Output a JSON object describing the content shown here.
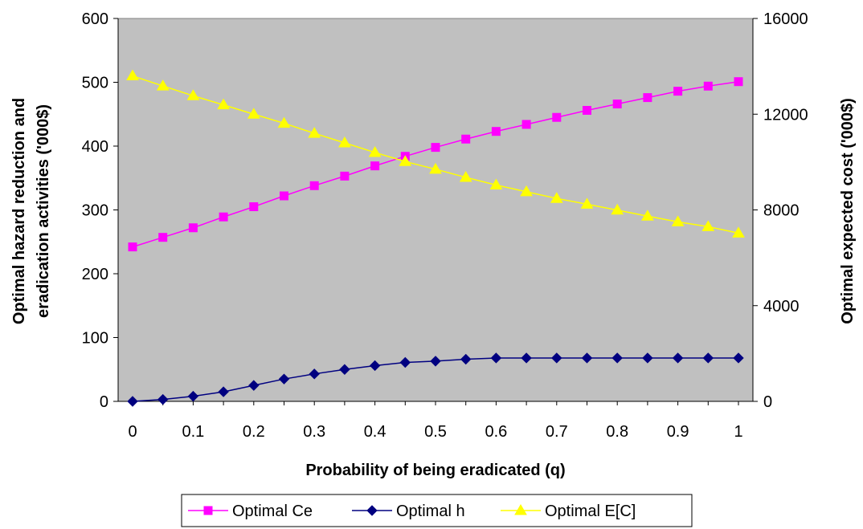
{
  "chart_data": {
    "type": "line",
    "xlabel": "Probability of being eradicated (q)",
    "ylabel": "Optimal hazard reduction and eradication activities ('000$)",
    "ylabel_lines": [
      "Optimal hazard reduction and",
      "eradication activities ('000$)"
    ],
    "y2label": "Optimal expected cost ('000$)",
    "x": [
      0,
      0.05,
      0.1,
      0.15,
      0.2,
      0.25,
      0.3,
      0.35,
      0.4,
      0.45,
      0.5,
      0.55,
      0.6,
      0.65,
      0.7,
      0.75,
      0.8,
      0.85,
      0.9,
      0.95,
      1
    ],
    "x_tick_labels": [
      "0",
      "0.1",
      "0.2",
      "0.3",
      "0.4",
      "0.5",
      "0.6",
      "0.7",
      "0.8",
      "0.9",
      "1"
    ],
    "ylim": [
      0,
      600
    ],
    "y_ticks": [
      0,
      100,
      200,
      300,
      400,
      500,
      600
    ],
    "y2lim": [
      0,
      16000
    ],
    "y2_ticks": [
      0,
      4000,
      8000,
      12000,
      16000
    ],
    "grid": false,
    "plot_background": "#c0c0c0",
    "legend_position": "bottom",
    "series": [
      {
        "name": "Optimal Ce",
        "axis": "left",
        "color": "#ff00ff",
        "marker": "square",
        "values": [
          242,
          257,
          272,
          289,
          305,
          322,
          338,
          353,
          369,
          384,
          398,
          411,
          423,
          434,
          445,
          456,
          466,
          476,
          486,
          494,
          501
        ]
      },
      {
        "name": "Optimal h",
        "axis": "left",
        "color": "#000080",
        "marker": "diamond",
        "values": [
          0,
          3,
          8,
          15,
          25,
          35,
          43,
          50,
          56,
          61,
          63,
          66,
          68,
          68,
          68,
          68,
          68,
          68,
          68,
          68,
          68
        ]
      },
      {
        "name": "Optimal E[C]",
        "axis": "right",
        "color": "#ffff00",
        "marker": "triangle",
        "values": [
          13600,
          13180,
          12770,
          12390,
          12000,
          11620,
          11200,
          10800,
          10400,
          10020,
          9700,
          9360,
          9040,
          8760,
          8480,
          8240,
          7990,
          7740,
          7500,
          7300,
          7030
        ]
      }
    ]
  }
}
